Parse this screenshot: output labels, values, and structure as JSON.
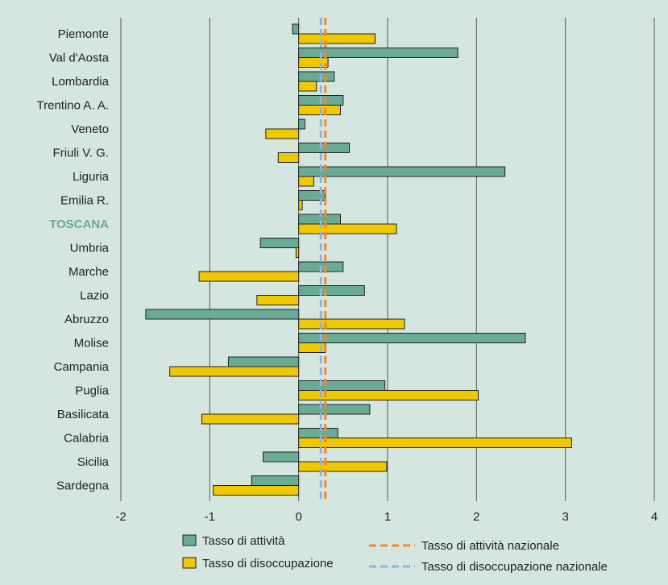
{
  "colors": {
    "background": "#d5e6e0",
    "plot_background": "#d5e6e0",
    "grid": "#555555",
    "activity": "#6aab98",
    "unemployment": "#f0c800",
    "activity_national": "#f08a2a",
    "unemployment_national": "#8fb3dd",
    "highlight_label": "#6aab98",
    "bar_stroke": "#222222"
  },
  "chart_data": {
    "type": "bar",
    "orientation": "horizontal",
    "categories": [
      "Piemonte",
      "Val d'Aosta",
      "Lombardia",
      "Trentino A. A.",
      "Veneto",
      "Friuli V. G.",
      "Liguria",
      "Emilia R.",
      "TOSCANA",
      "Umbria",
      "Marche",
      "Lazio",
      "Abruzzo",
      "Molise",
      "Campania",
      "Puglia",
      "Basilicata",
      "Calabria",
      "Sicilia",
      "Sardegna"
    ],
    "highlight_category": "TOSCANA",
    "series": [
      {
        "name": "Tasso di attività",
        "color_key": "activity",
        "values": [
          -0.07,
          1.79,
          0.4,
          0.5,
          0.07,
          0.57,
          2.32,
          0.3,
          0.47,
          -0.43,
          0.5,
          0.74,
          -1.72,
          2.55,
          -0.79,
          0.97,
          0.8,
          0.44,
          -0.4,
          -0.53
        ]
      },
      {
        "name": "Tasso di disoccupazione",
        "color_key": "unemployment",
        "values": [
          0.86,
          0.33,
          0.2,
          0.47,
          -0.37,
          -0.23,
          0.17,
          0.04,
          1.1,
          -0.03,
          -1.12,
          -0.47,
          1.19,
          0.3,
          -1.45,
          2.02,
          -1.09,
          3.07,
          0.99,
          -0.96
        ]
      }
    ],
    "reference_lines": [
      {
        "name": "Tasso di attività nazionale",
        "value": 0.3,
        "color_key": "activity_national",
        "style": "dashed"
      },
      {
        "name": "Tasso di disoccupazione nazionale",
        "value": 0.25,
        "color_key": "unemployment_national",
        "style": "dashed"
      }
    ],
    "xlim": [
      -2,
      4
    ],
    "xticks": [
      -2,
      -1,
      0,
      1,
      2,
      3,
      4
    ],
    "grid": "vertical",
    "legend": {
      "position": "bottom",
      "entries": [
        "Tasso di attività",
        "Tasso di disoccupazione",
        "Tasso di attività nazionale",
        "Tasso di disoccupazione nazionale"
      ]
    }
  }
}
